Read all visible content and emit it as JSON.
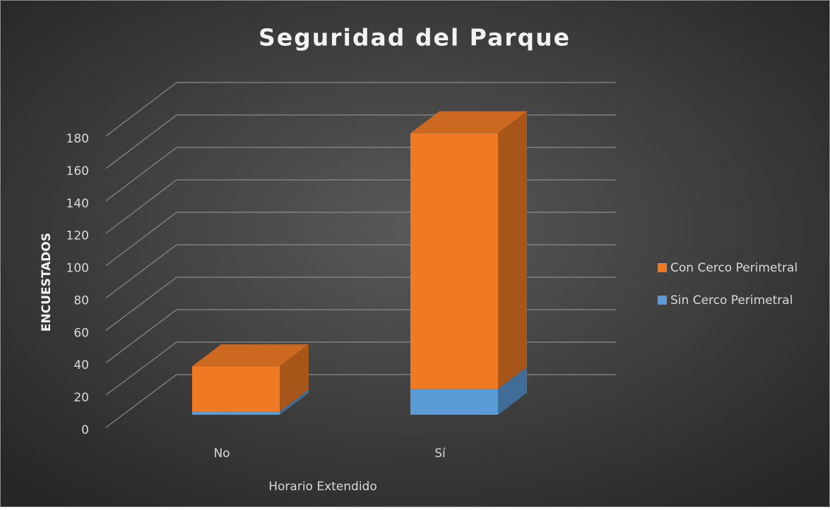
{
  "chart_data": {
    "type": "bar3d_stacked",
    "title": "Seguridad del Parque",
    "x_label": "Horario Extendido",
    "y_label": "ENCUESTADOS",
    "categories": [
      "No",
      "Sí"
    ],
    "series": [
      {
        "name": "Sin Cerco Perimetral",
        "color": "#5b9bd5",
        "values": [
          2,
          16
        ]
      },
      {
        "name": "Con Cerco Perimetral",
        "color": "#f07a24",
        "values": [
          28,
          158
        ]
      }
    ],
    "ylim": [
      0,
      180
    ],
    "yticks": [
      0,
      20,
      40,
      60,
      80,
      100,
      120,
      140,
      160,
      180
    ],
    "grid": true,
    "legend": "right"
  }
}
